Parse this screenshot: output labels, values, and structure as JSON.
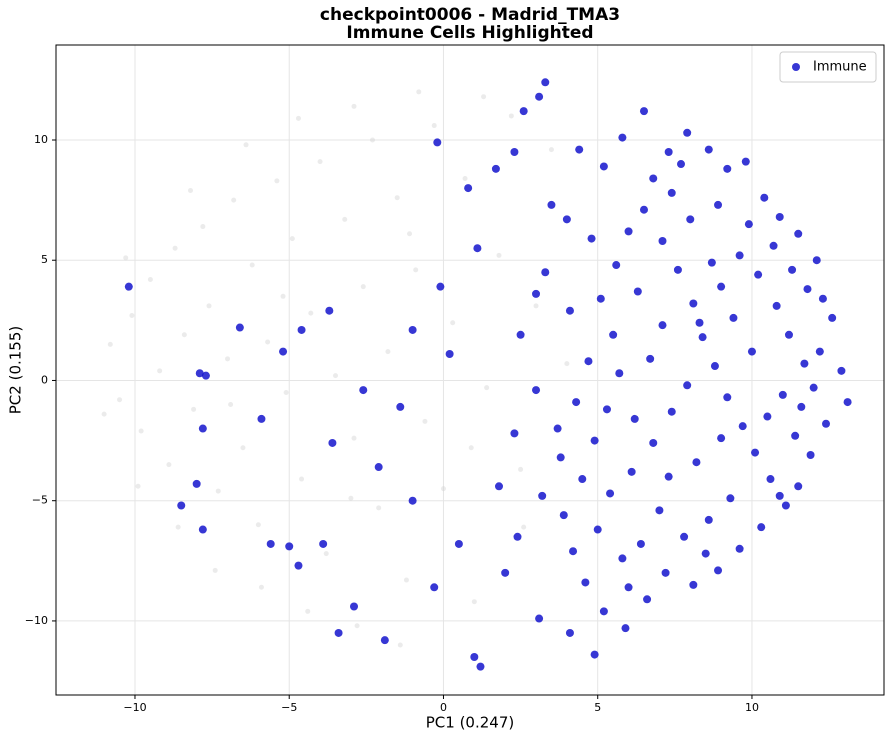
{
  "chart_data": {
    "type": "scatter",
    "title": "checkpoint0006 - Madrid_TMA3",
    "subtitle": "Immune Cells Highlighted",
    "x_label": "PC1 (0.247)",
    "y_label": "PC2 (0.155)",
    "xlim": [
      -12.56,
      14.28
    ],
    "ylim": [
      -13.08,
      13.95
    ],
    "xticks": [
      {
        "value": -10,
        "label": "−10"
      },
      {
        "value": -5,
        "label": "−5"
      },
      0,
      5,
      10
    ],
    "yticks": [
      {
        "value": -10,
        "label": "−10"
      },
      {
        "value": -5,
        "label": "−5"
      },
      0,
      5,
      10
    ],
    "grid": true,
    "legend": "upper right",
    "series": [
      {
        "color": "#d3d3d3",
        "x": [
          -10.8,
          -10.5,
          -10.1,
          -9.8,
          -9.5,
          -9.2,
          -8.9,
          -8.7,
          -8.4,
          -8.1,
          -7.8,
          -7.6,
          -7.3,
          -7.0,
          -6.8,
          -6.5,
          -6.2,
          -6.0,
          -5.7,
          -5.4,
          -5.1,
          -4.9,
          -4.6,
          -4.3,
          -4.0,
          -3.8,
          -3.5,
          -3.2,
          -2.9,
          -2.6,
          -2.3,
          -2.1,
          -1.8,
          -1.5,
          -1.2,
          -0.9,
          -0.6,
          -0.3,
          0.0,
          0.3,
          0.7,
          1.0,
          1.4,
          1.8,
          2.2,
          2.6,
          3.0,
          3.5,
          4.0,
          -9.9,
          -8.6,
          -7.4,
          -5.9,
          -4.4,
          -2.8,
          -1.4,
          -11.0,
          -10.3,
          -8.2,
          -6.4,
          -4.7,
          -2.9,
          -0.8,
          1.3,
          -6.9,
          -5.2,
          -3.0,
          -1.1,
          0.9,
          2.5
        ],
        "y": [
          1.5,
          -0.8,
          2.7,
          -2.1,
          4.2,
          0.4,
          -3.5,
          5.5,
          1.9,
          -1.2,
          6.4,
          3.1,
          -4.6,
          0.9,
          7.5,
          -2.8,
          4.8,
          -6.0,
          1.6,
          8.3,
          -0.5,
          5.9,
          -4.1,
          2.8,
          9.1,
          -7.2,
          0.2,
          6.7,
          -2.4,
          3.9,
          10.0,
          -5.3,
          1.2,
          7.6,
          -8.3,
          4.6,
          -1.7,
          10.6,
          -4.5,
          2.4,
          8.4,
          -9.2,
          -0.3,
          5.2,
          11.0,
          -6.1,
          3.1,
          9.6,
          0.7,
          -4.4,
          -6.1,
          -7.9,
          -8.6,
          -9.6,
          -10.2,
          -11.0,
          -1.4,
          5.1,
          7.9,
          9.8,
          10.9,
          11.4,
          12.0,
          11.8,
          -1.0,
          3.5,
          -4.9,
          6.1,
          -2.8,
          -3.7
        ]
      },
      {
        "name": "Immune",
        "color": "#1414cc",
        "x": [
          -10.2,
          -7.9,
          -7.7,
          -7.8,
          -6.6,
          -5.9,
          -5.2,
          -4.6,
          -3.7,
          -3.6,
          -8,
          -8.5,
          -7.8,
          -5.6,
          -5,
          -4.7,
          -3.9,
          -2.9,
          -3.4,
          -1.9,
          -0.2,
          0.8,
          1.1,
          -0.1,
          -1.0,
          0.2,
          -2.6,
          -1.4,
          -2.1,
          -1.0,
          0.5,
          1.0,
          1.2,
          -0.3,
          1.8,
          2.3,
          2.5,
          3.0,
          2.6,
          3.1,
          3.3,
          1.7,
          2.3,
          3.5,
          4.0,
          4.4,
          3.3,
          4.1,
          3.0,
          3.7,
          3.2,
          2.4,
          2.0,
          3.1,
          4.1,
          4.9,
          5.2,
          5.8,
          6.5,
          7.3,
          7.9,
          8.6,
          9.2,
          9.8,
          10.4,
          10.9,
          11.5,
          12.1,
          11.8,
          12.6,
          12.2,
          12.9,
          13.1,
          12.4,
          11.9,
          11.5,
          11.1,
          10.3,
          9.6,
          8.9,
          8.1,
          7.2,
          6.6,
          5.9,
          5.2,
          4.6,
          4.2,
          3.9,
          4.5,
          4.9,
          5.3,
          5.7,
          5.5,
          5.1,
          5.6,
          6.0,
          6.5,
          7.1,
          7.6,
          8.1,
          8.4,
          8.8,
          9.2,
          9.7,
          10.1,
          10.6,
          9.3,
          8.6,
          7.8,
          7.0,
          6.4,
          5.8,
          5.0,
          6.1,
          6.8,
          7.4,
          7.9,
          8.3,
          9.0,
          9.6,
          10.2,
          10.8,
          11.2,
          11.7,
          11.0,
          10.5,
          11.4,
          10.0,
          9.4,
          8.7,
          8.0,
          7.4,
          6.8,
          9.9,
          10.7,
          11.3,
          12.0,
          8.2,
          7.3,
          6.2,
          6.7,
          7.1,
          6.3,
          4.7,
          4.3,
          4.8,
          3.8,
          9.0,
          8.5,
          10.9,
          12.3,
          7.7,
          8.9,
          11.6,
          6.0,
          5.4
        ],
        "y": [
          3.9,
          0.3,
          0.2,
          -2,
          2.2,
          -1.6,
          1.2,
          2.1,
          2.9,
          -2.6,
          -4.3,
          -5.2,
          -6.2,
          -6.8,
          -6.9,
          -7.7,
          -6.8,
          -9.4,
          -10.5,
          -10.8,
          9.9,
          8,
          5.5,
          3.9,
          2.1,
          1.1,
          -0.4,
          -1.1,
          -3.6,
          -5.0,
          -6.8,
          -11.5,
          -11.9,
          -8.6,
          -4.4,
          -2.2,
          1.9,
          3.6,
          11.2,
          11.8,
          12.4,
          8.8,
          9.5,
          7.3,
          6.7,
          9.6,
          4.5,
          2.9,
          -0.4,
          -2.0,
          -4.8,
          -6.5,
          -8.0,
          -9.9,
          -10.5,
          -11.4,
          8.9,
          10.1,
          11.2,
          9.5,
          10.3,
          9.6,
          8.8,
          9.1,
          7.6,
          6.8,
          6.1,
          5.0,
          3.8,
          2.6,
          1.2,
          0.4,
          -0.9,
          -1.8,
          -3.1,
          -4.4,
          -5.2,
          -6.1,
          -7.0,
          -7.9,
          -8.5,
          -8.0,
          -9.1,
          -10.3,
          -9.6,
          -8.4,
          -7.1,
          -5.6,
          -4.1,
          -2.5,
          -1.2,
          0.3,
          1.9,
          3.4,
          4.8,
          6.2,
          7.1,
          5.8,
          4.6,
          3.2,
          1.8,
          0.6,
          -0.7,
          -1.9,
          -3.0,
          -4.1,
          -4.9,
          -5.8,
          -6.5,
          -5.4,
          -6.8,
          -7.4,
          -6.2,
          -3.8,
          -2.6,
          -1.3,
          -0.2,
          2.4,
          3.9,
          5.2,
          4.4,
          3.1,
          1.9,
          0.7,
          -0.6,
          -1.5,
          -2.3,
          1.2,
          2.6,
          4.9,
          6.7,
          7.8,
          8.4,
          6.5,
          5.6,
          4.6,
          -0.3,
          -3.4,
          -4.0,
          -1.6,
          0.9,
          2.3,
          3.7,
          0.8,
          -0.9,
          5.9,
          -3.2,
          -2.4,
          -7.2,
          -4.8,
          3.4,
          9.0,
          7.3,
          -1.1,
          -8.6,
          -4.7
        ]
      }
    ]
  }
}
